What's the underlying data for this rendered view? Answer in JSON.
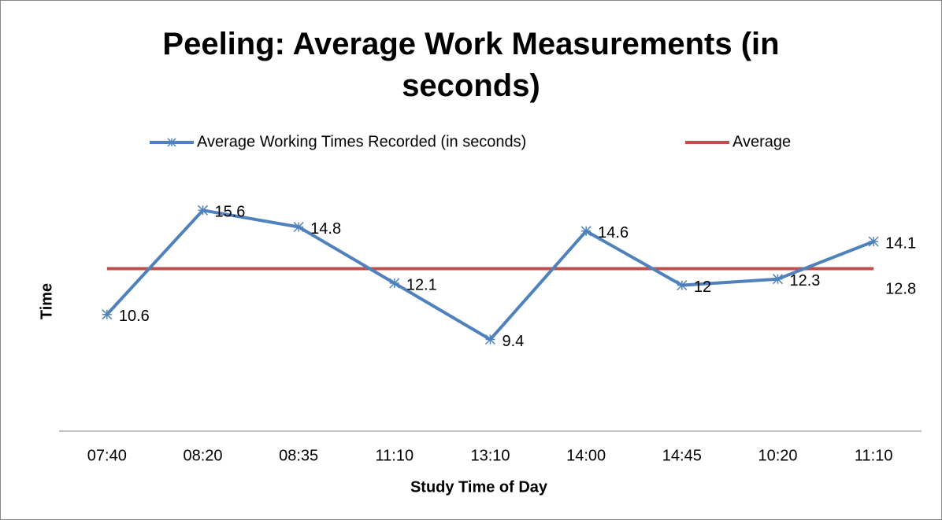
{
  "chart_data": {
    "type": "line",
    "title": "Peeling: Average Work Measurements (in seconds)",
    "x_label": "Study Time of Day",
    "y_label": "Time",
    "categories": [
      "07:40",
      "08:20",
      "08:35",
      "11:10",
      "13:10",
      "14:00",
      "14:45",
      "10:20",
      "11:10"
    ],
    "series": [
      {
        "name": "Average Working Times Recorded (in seconds)",
        "color": "#4f81bd",
        "marker": "star",
        "data_labels": "all",
        "values": [
          10.6,
          15.6,
          14.8,
          12.1,
          9.4,
          14.6,
          12,
          12.3,
          14.1
        ]
      },
      {
        "name": "Average",
        "color": "#c0504d",
        "marker": "none",
        "data_labels": "last",
        "values": [
          12.8,
          12.8,
          12.8,
          12.8,
          12.8,
          12.8,
          12.8,
          12.8,
          12.8
        ]
      }
    ],
    "ylim": [
      5,
      17.5
    ],
    "legend": "top"
  }
}
